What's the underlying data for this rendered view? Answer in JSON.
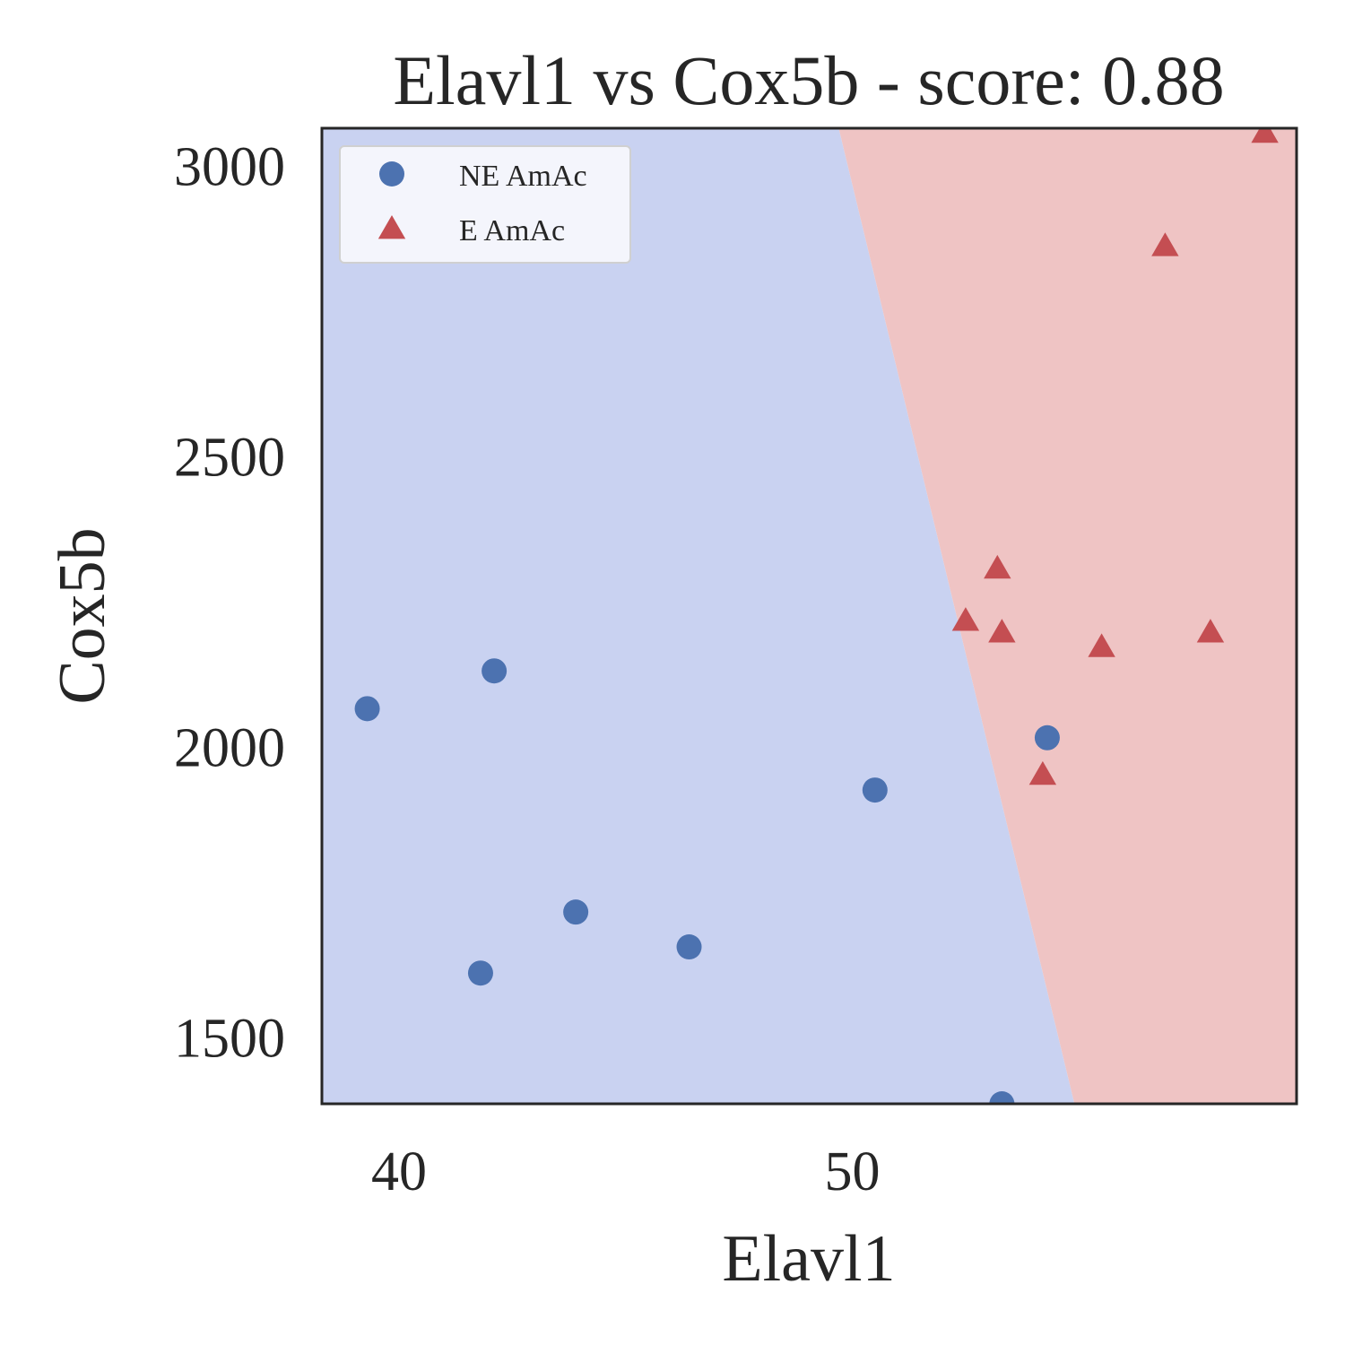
{
  "chart_data": {
    "type": "scatter",
    "title": "Elavl1 vs Cox5b - score: 0.88",
    "xlabel": "Elavl1",
    "ylabel": "Cox5b",
    "xlim": [
      38.3,
      59.8
    ],
    "ylim": [
      1385,
      3064
    ],
    "xticks": [
      40,
      50
    ],
    "yticks": [
      1500,
      2000,
      2500,
      3000
    ],
    "grid": false,
    "legend_position": "top-left",
    "decision_boundary": {
      "x_at_ymax": 49.7,
      "x_at_ymin": 54.9
    },
    "regions": [
      {
        "class": "NE AmAc",
        "color": "#c9d2f1",
        "side": "left"
      },
      {
        "class": "E AmAc",
        "color": "#efc4c4",
        "side": "right"
      }
    ],
    "series": [
      {
        "name": "NE AmAc",
        "marker": "circle",
        "color": "#4c72b0",
        "points": [
          [
            39.3,
            2065
          ],
          [
            42.1,
            2130
          ],
          [
            41.8,
            1610
          ],
          [
            43.9,
            1715
          ],
          [
            46.4,
            1655
          ],
          [
            50.5,
            1925
          ],
          [
            54.3,
            2015
          ],
          [
            53.3,
            1385
          ]
        ]
      },
      {
        "name": "E AmAc",
        "marker": "triangle",
        "color": "#c44e52",
        "points": [
          [
            52.5,
            2215
          ],
          [
            53.2,
            2305
          ],
          [
            53.3,
            2195
          ],
          [
            54.2,
            1950
          ],
          [
            55.5,
            2170
          ],
          [
            56.9,
            2860
          ],
          [
            57.9,
            2195
          ],
          [
            59.1,
            3055
          ]
        ]
      }
    ]
  }
}
